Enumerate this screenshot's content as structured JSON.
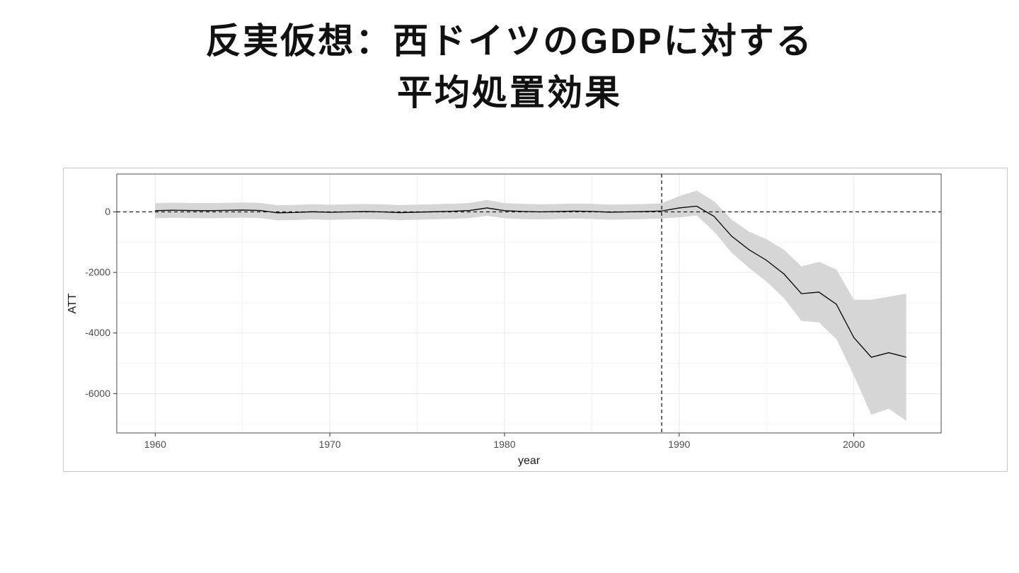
{
  "title": {
    "line1": "反実仮想：西ドイツのGDPに対する",
    "line2": "平均処置効果"
  },
  "chart_data": {
    "type": "line",
    "title": "反実仮想：西ドイツのGDPに対する平均処置効果",
    "xlabel": "year",
    "ylabel": "ATT",
    "x_ticks": [
      1960,
      1970,
      1980,
      1990,
      2000
    ],
    "y_ticks": [
      0,
      -2000,
      -4000,
      -6000
    ],
    "x_minor": [
      1965,
      1975,
      1985,
      1995
    ],
    "y_minor": [
      -1000,
      -3000,
      -5000,
      -7000
    ],
    "xlim": [
      1957.8,
      2005
    ],
    "ylim": [
      -7300,
      1250
    ],
    "grid": true,
    "legend": "none",
    "reference_lines": {
      "horizontal_y": 0,
      "vertical_x": 1989,
      "style": "dashed"
    },
    "series": [
      {
        "name": "ATT",
        "years": [
          1960,
          1961,
          1962,
          1963,
          1964,
          1965,
          1966,
          1967,
          1968,
          1969,
          1970,
          1971,
          1972,
          1973,
          1974,
          1975,
          1976,
          1977,
          1978,
          1979,
          1980,
          1981,
          1982,
          1983,
          1984,
          1985,
          1986,
          1987,
          1988,
          1989,
          1990,
          1991,
          1992,
          1993,
          1994,
          1995,
          1996,
          1997,
          1998,
          1999,
          2000,
          2001,
          2002,
          2003
        ],
        "values": [
          40,
          55,
          45,
          40,
          50,
          60,
          45,
          -30,
          -20,
          5,
          -15,
          0,
          10,
          0,
          -25,
          -10,
          5,
          20,
          45,
          130,
          40,
          15,
          0,
          10,
          25,
          15,
          -10,
          0,
          10,
          30,
          130,
          190,
          -150,
          -800,
          -1250,
          -1600,
          -2050,
          -2700,
          -2650,
          -3050,
          -4150,
          -4800,
          -4650,
          -4800
        ],
        "ci_lower": [
          -210,
          -195,
          -205,
          -210,
          -200,
          -190,
          -205,
          -280,
          -270,
          -245,
          -265,
          -250,
          -240,
          -250,
          -275,
          -260,
          -245,
          -230,
          -205,
          -130,
          -210,
          -235,
          -250,
          -240,
          -225,
          -235,
          -260,
          -250,
          -240,
          -220,
          -180,
          -120,
          -650,
          -1350,
          -1850,
          -2300,
          -2850,
          -3600,
          -3650,
          -4200,
          -5400,
          -6700,
          -6500,
          -6900
        ],
        "ci_upper": [
          290,
          305,
          295,
          290,
          300,
          310,
          295,
          220,
          230,
          255,
          235,
          250,
          260,
          250,
          225,
          240,
          255,
          270,
          295,
          390,
          290,
          265,
          250,
          260,
          275,
          265,
          240,
          250,
          260,
          280,
          520,
          700,
          350,
          -250,
          -650,
          -900,
          -1250,
          -1800,
          -1650,
          -1900,
          -2900,
          -2900,
          -2800,
          -2700
        ]
      }
    ],
    "colors": {
      "line": "#000000",
      "ribbon": "#d6d6d6",
      "grid_major": "#e8e8e8",
      "grid_minor": "#f4f4f4",
      "panel_border": "#4d4d4d",
      "tick_mark": "#333333",
      "tick_label": "#4d4d4d",
      "axis_title": "#1a1a1a",
      "dashed": "#1a1a1a",
      "figure_border": "#c9c9c9",
      "panel_bg": "#ffffff"
    }
  }
}
